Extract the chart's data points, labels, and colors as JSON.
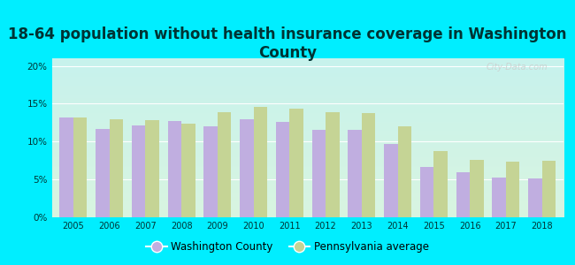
{
  "title": "18-64 population without health insurance coverage in Washington\nCounty",
  "years": [
    2005,
    2006,
    2007,
    2008,
    2009,
    2010,
    2011,
    2012,
    2013,
    2014,
    2015,
    2016,
    2017,
    2018
  ],
  "washington_county": [
    13.2,
    11.7,
    12.1,
    12.7,
    12.0,
    12.9,
    12.6,
    11.5,
    11.6,
    9.7,
    6.6,
    5.9,
    5.2,
    5.1
  ],
  "pennsylvania_avg": [
    13.2,
    13.0,
    12.8,
    12.4,
    13.9,
    14.6,
    14.4,
    13.9,
    13.8,
    12.0,
    8.7,
    7.6,
    7.4,
    7.5
  ],
  "bar_color_county": "#c0aee0",
  "bar_color_pa": "#c5d495",
  "background_outer": "#00eeff",
  "background_plot_top": "#c8f0ee",
  "background_plot_bottom": "#d8f0e0",
  "yticks": [
    0,
    5,
    10,
    15,
    20
  ],
  "ylim": [
    0,
    21
  ],
  "legend_county": "Washington County",
  "legend_pa": "Pennsylvania average",
  "title_fontsize": 12,
  "title_color": "#003333",
  "tick_color": "#003333",
  "bar_width": 0.38
}
